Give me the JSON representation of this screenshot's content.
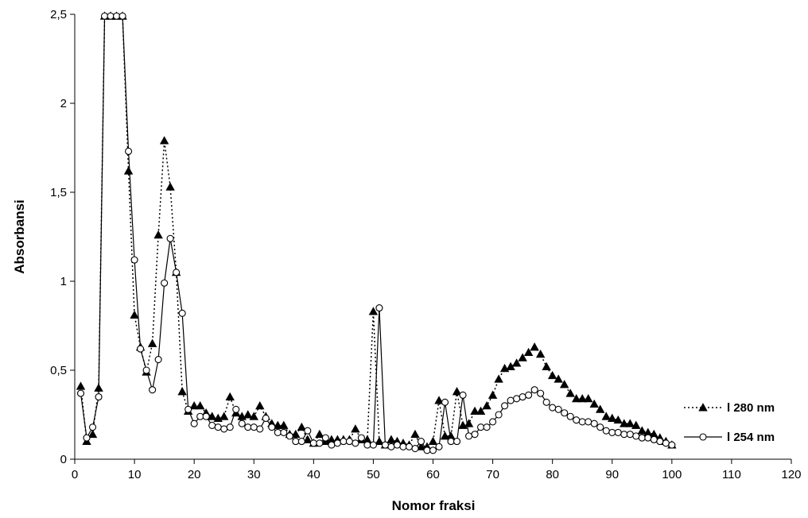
{
  "chart_data": {
    "type": "line",
    "title": "",
    "xlabel": "Nomor fraksi",
    "ylabel": "Absorbansi",
    "xlim": [
      0,
      120
    ],
    "ylim": [
      0,
      2.5
    ],
    "xticks": [
      0,
      10,
      20,
      30,
      40,
      50,
      60,
      70,
      80,
      90,
      100,
      110,
      120
    ],
    "yticks": [
      0,
      0.5,
      1,
      1.5,
      2,
      2.5
    ],
    "xtick_labels": [
      "0",
      "10",
      "20",
      "30",
      "40",
      "50",
      "60",
      "70",
      "80",
      "90",
      "100",
      "110",
      "120"
    ],
    "ytick_labels": [
      "0",
      "0,5",
      "1",
      "1,5",
      "2",
      "2,5"
    ],
    "grid": false,
    "legend_position": "right",
    "series": [
      {
        "name": "l 280 nm",
        "line_style": "dotted",
        "marker": "filled-triangle",
        "color": "#000000",
        "values": [
          0.41,
          0.1,
          0.14,
          0.4,
          2.49,
          2.49,
          2.49,
          2.49,
          1.62,
          0.81,
          0.63,
          0.49,
          0.65,
          1.26,
          1.79,
          1.53,
          1.05,
          0.38,
          0.27,
          0.3,
          0.3,
          0.26,
          0.24,
          0.23,
          0.24,
          0.35,
          0.26,
          0.24,
          0.25,
          0.24,
          0.3,
          0.24,
          0.2,
          0.19,
          0.19,
          0.14,
          0.14,
          0.18,
          0.11,
          0.09,
          0.14,
          0.1,
          0.11,
          0.11,
          0.11,
          0.11,
          0.17,
          0.11,
          0.11,
          0.83,
          0.1,
          0.08,
          0.11,
          0.1,
          0.09,
          0.08,
          0.14,
          0.07,
          0.07,
          0.1,
          0.33,
          0.13,
          0.13,
          0.38,
          0.19,
          0.2,
          0.27,
          0.27,
          0.3,
          0.36,
          0.45,
          0.51,
          0.52,
          0.54,
          0.57,
          0.6,
          0.63,
          0.59,
          0.52,
          0.47,
          0.45,
          0.42,
          0.37,
          0.34,
          0.34,
          0.34,
          0.31,
          0.28,
          0.24,
          0.23,
          0.22,
          0.2,
          0.2,
          0.19,
          0.16,
          0.15,
          0.14,
          0.12,
          0.1,
          0.08
        ]
      },
      {
        "name": "l 254 nm",
        "line_style": "solid",
        "marker": "open-circle",
        "color": "#000000",
        "values": [
          0.37,
          0.12,
          0.18,
          0.35,
          2.49,
          2.49,
          2.49,
          2.49,
          1.73,
          1.12,
          0.62,
          0.5,
          0.39,
          0.56,
          0.99,
          1.24,
          1.05,
          0.82,
          0.28,
          0.2,
          0.24,
          0.24,
          0.19,
          0.18,
          0.17,
          0.18,
          0.28,
          0.2,
          0.18,
          0.18,
          0.17,
          0.23,
          0.18,
          0.15,
          0.15,
          0.13,
          0.1,
          0.1,
          0.16,
          0.09,
          0.09,
          0.12,
          0.08,
          0.09,
          0.1,
          0.1,
          0.09,
          0.12,
          0.08,
          0.08,
          0.85,
          0.08,
          0.07,
          0.08,
          0.07,
          0.07,
          0.06,
          0.1,
          0.05,
          0.05,
          0.07,
          0.32,
          0.1,
          0.1,
          0.36,
          0.13,
          0.14,
          0.18,
          0.18,
          0.21,
          0.25,
          0.3,
          0.33,
          0.34,
          0.35,
          0.36,
          0.39,
          0.37,
          0.32,
          0.29,
          0.28,
          0.26,
          0.24,
          0.22,
          0.21,
          0.21,
          0.2,
          0.18,
          0.16,
          0.15,
          0.15,
          0.14,
          0.14,
          0.13,
          0.12,
          0.12,
          0.11,
          0.1,
          0.09,
          0.08
        ]
      }
    ]
  }
}
